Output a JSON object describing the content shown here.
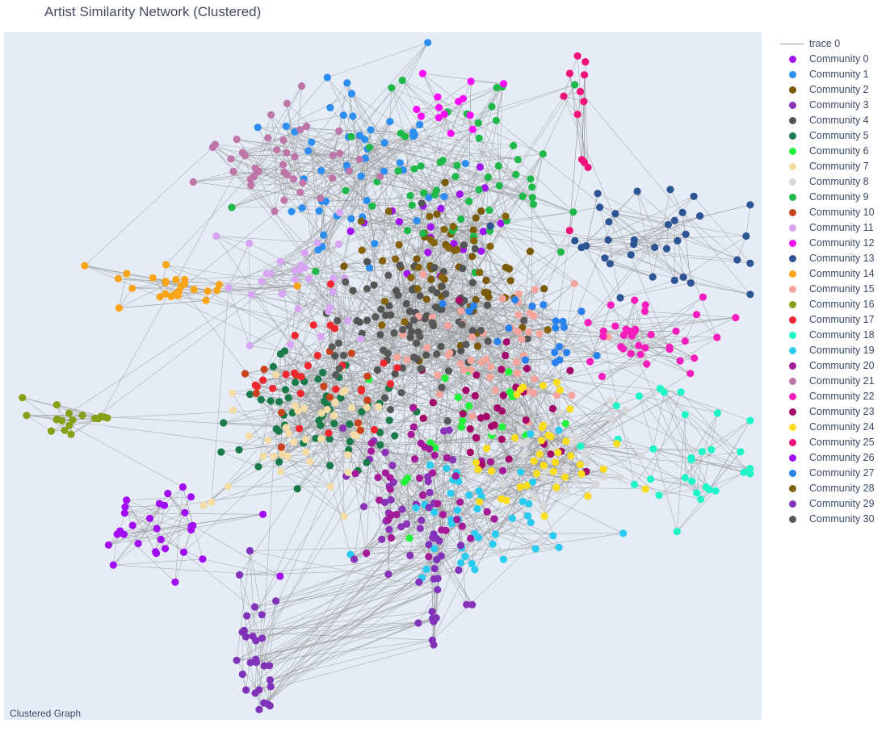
{
  "title": "Artist Similarity Network (Clustered)",
  "annotation": "Clustered Graph",
  "chart_data": {
    "type": "scatter",
    "title": "Artist Similarity Network (Clustered)",
    "axes_visible": false,
    "grid": false,
    "legend_placement": "right",
    "edge_trace": {
      "name": "trace 0",
      "color": "#999999"
    },
    "series": [
      {
        "name": "Community 0",
        "color": "#a113f0",
        "cx": 0.58,
        "cy": 0.3,
        "n": 20
      },
      {
        "name": "Community 1",
        "color": "#2c8ef0",
        "cx": 0.47,
        "cy": 0.18,
        "n": 50
      },
      {
        "name": "Community 2",
        "color": "#7a5a0a",
        "cx": 0.6,
        "cy": 0.36,
        "n": 45
      },
      {
        "name": "Community 3",
        "color": "#8a33b8",
        "cx": 0.52,
        "cy": 0.67,
        "n": 30
      },
      {
        "name": "Community 4",
        "color": "#545454",
        "cx": 0.56,
        "cy": 0.41,
        "n": 70
      },
      {
        "name": "Community 5",
        "color": "#1a7a4a",
        "cx": 0.42,
        "cy": 0.55,
        "n": 55
      },
      {
        "name": "Community 6",
        "color": "#23f23a",
        "cx": 0.62,
        "cy": 0.56,
        "n": 20
      },
      {
        "name": "Community 7",
        "color": "#f4dca6",
        "cx": 0.39,
        "cy": 0.58,
        "n": 40
      },
      {
        "name": "Community 8",
        "color": "#d8d8d8",
        "cx": 0.71,
        "cy": 0.62,
        "n": 45
      },
      {
        "name": "Community 9",
        "color": "#1fb84a",
        "cx": 0.6,
        "cy": 0.2,
        "n": 60
      },
      {
        "name": "Community 10",
        "color": "#c8421e",
        "cx": 0.42,
        "cy": 0.52,
        "n": 15
      },
      {
        "name": "Community 11",
        "color": "#d8a4f4",
        "cx": 0.39,
        "cy": 0.37,
        "n": 30
      },
      {
        "name": "Community 12",
        "color": "#fb0ef6",
        "cx": 0.59,
        "cy": 0.1,
        "n": 14
      },
      {
        "name": "Community 13",
        "color": "#2d5594",
        "cx": 0.85,
        "cy": 0.3,
        "n": 35
      },
      {
        "name": "Community 14",
        "color": "#faa519",
        "cx": 0.22,
        "cy": 0.37,
        "n": 25
      },
      {
        "name": "Community 15",
        "color": "#f4a49c",
        "cx": 0.66,
        "cy": 0.47,
        "n": 50
      },
      {
        "name": "Community 16",
        "color": "#88a018",
        "cx": 0.09,
        "cy": 0.56,
        "n": 18
      },
      {
        "name": "Community 17",
        "color": "#f2262f",
        "cx": 0.42,
        "cy": 0.5,
        "n": 25
      },
      {
        "name": "Community 18",
        "color": "#1ef5c8",
        "cx": 0.89,
        "cy": 0.63,
        "n": 30
      },
      {
        "name": "Community 19",
        "color": "#29ccf0",
        "cx": 0.63,
        "cy": 0.7,
        "n": 45
      },
      {
        "name": "Community 20",
        "color": "#a41a98",
        "cx": 0.55,
        "cy": 0.66,
        "n": 40
      },
      {
        "name": "Community 21",
        "color": "#be75a8",
        "cx": 0.38,
        "cy": 0.17,
        "n": 40
      },
      {
        "name": "Community 22",
        "color": "#f51dbc",
        "cx": 0.83,
        "cy": 0.44,
        "n": 35
      },
      {
        "name": "Community 23",
        "color": "#a50a6a",
        "cx": 0.63,
        "cy": 0.54,
        "n": 35
      },
      {
        "name": "Community 24",
        "color": "#fadd1c",
        "cx": 0.72,
        "cy": 0.62,
        "n": 40
      },
      {
        "name": "Community 25",
        "color": "#f2117a",
        "cx": 0.76,
        "cy": 0.1,
        "n": 12
      },
      {
        "name": "Community 26",
        "color": "#a20cf5",
        "cx": 0.21,
        "cy": 0.73,
        "n": 30
      },
      {
        "name": "Community 27",
        "color": "#2a82f0",
        "cx": 0.68,
        "cy": 0.43,
        "n": 20
      },
      {
        "name": "Community 28",
        "color": "#85620c",
        "cx": 0.58,
        "cy": 0.33,
        "n": 25
      },
      {
        "name": "Community 29",
        "color": "#8033b8",
        "cx": 0.33,
        "cy": 0.9,
        "n": 28
      },
      {
        "name": "Community 30",
        "color": "#595959",
        "cx": 0.53,
        "cy": 0.44,
        "n": 30
      }
    ],
    "extra_clusters": [
      {
        "series": 29,
        "cx": 0.57,
        "cy": 0.82,
        "n": 22
      },
      {
        "series": 3,
        "cx": 0.57,
        "cy": 0.82,
        "n": 4
      }
    ]
  },
  "legend": {
    "items": [
      {
        "label": "trace 0",
        "kind": "line",
        "color": "#999999"
      },
      {
        "label": "Community 0",
        "kind": "dot",
        "color": "#a113f0"
      },
      {
        "label": "Community 1",
        "kind": "dot",
        "color": "#2c8ef0"
      },
      {
        "label": "Community 2",
        "kind": "dot",
        "color": "#7a5a0a"
      },
      {
        "label": "Community 3",
        "kind": "dot",
        "color": "#8a33b8"
      },
      {
        "label": "Community 4",
        "kind": "dot",
        "color": "#545454"
      },
      {
        "label": "Community 5",
        "kind": "dot",
        "color": "#1a7a4a"
      },
      {
        "label": "Community 6",
        "kind": "dot",
        "color": "#23f23a"
      },
      {
        "label": "Community 7",
        "kind": "dot",
        "color": "#f4dca6"
      },
      {
        "label": "Community 8",
        "kind": "dot",
        "color": "#d8d8d8"
      },
      {
        "label": "Community 9",
        "kind": "dot",
        "color": "#1fb84a"
      },
      {
        "label": "Community 10",
        "kind": "dot",
        "color": "#c8421e"
      },
      {
        "label": "Community 11",
        "kind": "dot",
        "color": "#d8a4f4"
      },
      {
        "label": "Community 12",
        "kind": "dot",
        "color": "#fb0ef6"
      },
      {
        "label": "Community 13",
        "kind": "dot",
        "color": "#2d5594"
      },
      {
        "label": "Community 14",
        "kind": "dot",
        "color": "#faa519"
      },
      {
        "label": "Community 15",
        "kind": "dot",
        "color": "#f4a49c"
      },
      {
        "label": "Community 16",
        "kind": "dot",
        "color": "#88a018"
      },
      {
        "label": "Community 17",
        "kind": "dot",
        "color": "#f2262f"
      },
      {
        "label": "Community 18",
        "kind": "dot",
        "color": "#1ef5c8"
      },
      {
        "label": "Community 19",
        "kind": "dot",
        "color": "#29ccf0"
      },
      {
        "label": "Community 20",
        "kind": "dot",
        "color": "#a41a98"
      },
      {
        "label": "Community 21",
        "kind": "dot",
        "color": "#be75a8"
      },
      {
        "label": "Community 22",
        "kind": "dot",
        "color": "#f51dbc"
      },
      {
        "label": "Community 23",
        "kind": "dot",
        "color": "#a50a6a"
      },
      {
        "label": "Community 24",
        "kind": "dot",
        "color": "#fadd1c"
      },
      {
        "label": "Community 25",
        "kind": "dot",
        "color": "#f2117a"
      },
      {
        "label": "Community 26",
        "kind": "dot",
        "color": "#a20cf5"
      },
      {
        "label": "Community 27",
        "kind": "dot",
        "color": "#2a82f0"
      },
      {
        "label": "Community 28",
        "kind": "dot",
        "color": "#85620c"
      },
      {
        "label": "Community 29",
        "kind": "dot",
        "color": "#8033b8"
      },
      {
        "label": "Community 30",
        "kind": "dot",
        "color": "#595959"
      }
    ]
  }
}
